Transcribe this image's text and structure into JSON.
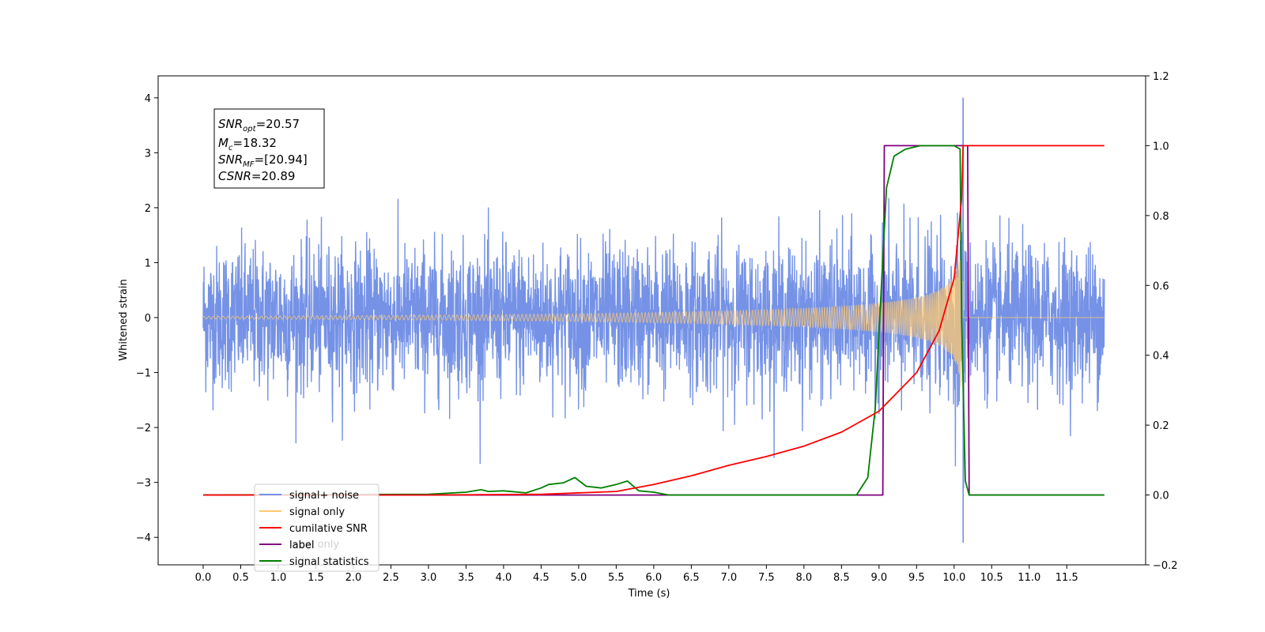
{
  "chart_data": {
    "type": "line",
    "xlabel": "Time (s)",
    "ylabel": "Whitened strain",
    "xlim": [
      -0.6,
      12.55
    ],
    "ylim": [
      -4.5,
      4.4
    ],
    "y2lim": [
      -0.2,
      1.2
    ],
    "x_ticks": [
      "0.0",
      "0.5",
      "1.0",
      "1.5",
      "2.0",
      "2.5",
      "3.0",
      "3.5",
      "4.0",
      "4.5",
      "5.0",
      "5.5",
      "6.0",
      "6.5",
      "7.0",
      "7.5",
      "8.0",
      "8.5",
      "9.0",
      "9.5",
      "10.0",
      "10.5",
      "11.0",
      "11.5"
    ],
    "y_ticks": [
      "4",
      "3",
      "2",
      "1",
      "0",
      "−1",
      "−2",
      "−3",
      "−4"
    ],
    "y2_ticks": [
      "1.2",
      "1.0",
      "0.8",
      "0.6",
      "0.4",
      "0.2",
      "0.0",
      "−0.2"
    ],
    "legend_position": "lower-left",
    "legend": [
      {
        "label": "signal+ noise",
        "color": "#7592e6"
      },
      {
        "label": "signal only",
        "color": "#ffc870"
      },
      {
        "label": "cumilative SNR",
        "color": "#ff0000"
      },
      {
        "label": "label",
        "color": "#800080"
      },
      {
        "label": "signal statistics",
        "color": "#008000"
      }
    ],
    "legend_hidden_text": "label only",
    "annotation": {
      "snr_opt": {
        "base": "SNR",
        "sub": "opt",
        "value": "=20.57"
      },
      "mc": {
        "base": "M",
        "sub": "c",
        "value": "=18.32"
      },
      "snr_mf": {
        "base": "SNR",
        "sub": "MF",
        "value": "=[20.94]"
      },
      "csnr": {
        "base": "CSNR",
        "value": "=20.89"
      }
    },
    "series": [
      {
        "name": "signal+ noise",
        "axis": "left",
        "description_values": {
          "t_start": 0.0,
          "t_end": 12.0,
          "noise_sigma": 0.65,
          "spike_time": 10.12,
          "spike_max": 4.0,
          "spike_min": -4.1
        }
      },
      {
        "name": "signal only",
        "axis": "left",
        "description_values": {
          "t_start": 0.0,
          "t_end": 12.0,
          "merger_time": 10.1,
          "peak_amplitude": 1.5
        }
      },
      {
        "name": "cumilative SNR",
        "axis": "right",
        "x": [
          0.0,
          3.0,
          4.5,
          5.5,
          6.0,
          6.5,
          7.0,
          7.5,
          8.0,
          8.5,
          9.0,
          9.5,
          9.8,
          10.0,
          10.1,
          10.12,
          12.0
        ],
        "y": [
          0.0,
          0.0,
          0.002,
          0.01,
          0.03,
          0.055,
          0.085,
          0.11,
          0.14,
          0.18,
          0.24,
          0.35,
          0.47,
          0.62,
          0.85,
          1.0,
          1.0
        ]
      },
      {
        "name": "label",
        "axis": "right",
        "x": [
          0.0,
          9.05,
          9.07,
          10.18,
          10.2,
          12.0
        ],
        "y": [
          0.0,
          0.0,
          1.0,
          1.0,
          0.0,
          0.0
        ]
      },
      {
        "name": "signal statistics",
        "axis": "right",
        "x": [
          0.0,
          3.0,
          3.5,
          3.7,
          3.8,
          4.0,
          4.3,
          4.5,
          4.6,
          4.8,
          4.95,
          5.1,
          5.3,
          5.5,
          5.65,
          5.8,
          6.0,
          6.2,
          8.7,
          8.85,
          8.95,
          9.02,
          9.1,
          9.2,
          9.35,
          9.55,
          10.0,
          10.08,
          10.1,
          10.15,
          10.2,
          12.0
        ],
        "y": [
          0.0,
          0.002,
          0.008,
          0.015,
          0.01,
          0.012,
          0.006,
          0.02,
          0.03,
          0.035,
          0.05,
          0.025,
          0.02,
          0.03,
          0.04,
          0.012,
          0.008,
          0.0,
          0.0,
          0.05,
          0.25,
          0.55,
          0.88,
          0.97,
          0.99,
          1.0,
          1.0,
          0.99,
          0.5,
          0.04,
          0.0,
          0.0
        ]
      }
    ]
  }
}
